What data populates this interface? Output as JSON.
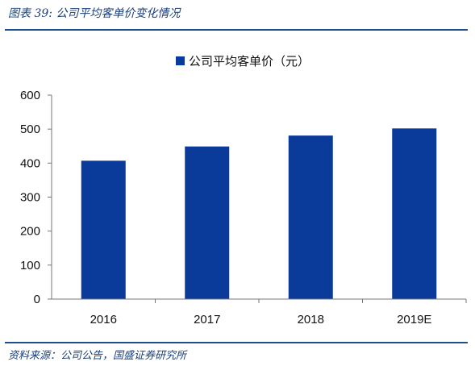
{
  "figure": {
    "title": "图表 39: 公司平均客单价变化情况",
    "source": "资料来源：公司公告，国盛证券研究所"
  },
  "chart_data": {
    "type": "bar",
    "categories": [
      "2016",
      "2017",
      "2018",
      "2019E"
    ],
    "series": [
      {
        "name": "公司平均客单价（元）",
        "values": [
          407,
          449,
          481,
          502
        ]
      }
    ],
    "ylim": [
      0,
      600
    ],
    "yticks": [
      0,
      100,
      200,
      300,
      400,
      500,
      600
    ],
    "grid": false,
    "legend": "top-center",
    "colors": {
      "bar": "#0a3a9a",
      "axis": "#777777",
      "title": "#1a3f7a",
      "rule": "#1f4e8c"
    }
  }
}
